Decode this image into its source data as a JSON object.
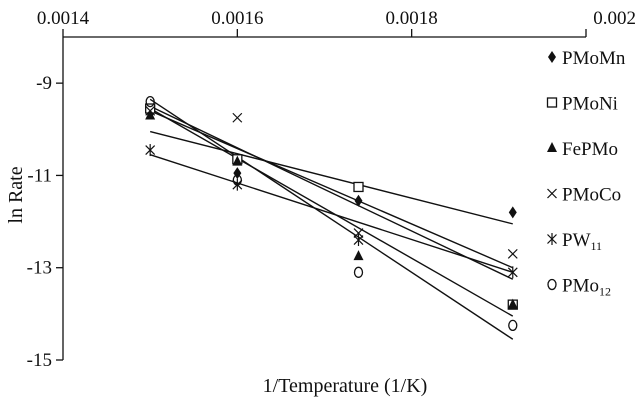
{
  "chart_data": {
    "type": "scatter",
    "title": "",
    "xlabel": "1/Temperature (1/K)",
    "ylabel": "ln Rate",
    "xlim": [
      0.0014,
      0.002
    ],
    "ylim": [
      -15,
      -8
    ],
    "x_ticks": [
      0.0014,
      0.0016,
      0.0018,
      0.002
    ],
    "x_tick_labels": [
      "0.0014",
      "0.0016",
      "0.0018",
      "0.002"
    ],
    "y_ticks": [
      -9,
      -11,
      -13,
      -15
    ],
    "y_tick_labels": [
      "-9",
      "-11",
      "-13",
      "-15"
    ],
    "x_axis_position": "top",
    "grid": false,
    "legend_position": "right",
    "series": [
      {
        "name": "PMoMn",
        "name_sub": "",
        "marker": "filled-diamond",
        "x": [
          0.0015,
          0.0016,
          0.001739,
          0.001916
        ],
        "y": [
          -9.65,
          -10.95,
          -11.55,
          -11.8
        ],
        "fit": [
          [
            0.0015,
            -9.6
          ],
          [
            0.001916,
            -13.0
          ]
        ]
      },
      {
        "name": "PMoNi",
        "name_sub": "",
        "marker": "open-square",
        "x": [
          0.0015,
          0.0016,
          0.001739,
          0.001916
        ],
        "y": [
          -9.55,
          -10.65,
          -11.25,
          -13.8
        ],
        "fit": [
          [
            0.0015,
            -9.5
          ],
          [
            0.001916,
            -13.25
          ]
        ]
      },
      {
        "name": "FePMo",
        "name_sub": "",
        "marker": "filled-triangle",
        "x": [
          0.0015,
          0.0016,
          0.001739,
          0.001916
        ],
        "y": [
          -9.7,
          -10.7,
          -12.75,
          -13.8
        ],
        "fit": [
          [
            0.0015,
            -9.55
          ],
          [
            0.001916,
            -14.05
          ]
        ]
      },
      {
        "name": "PMoCo",
        "name_sub": "",
        "marker": "cross",
        "x": [
          0.0015,
          0.0016,
          0.001739,
          0.001916
        ],
        "y": [
          -9.6,
          -9.75,
          -12.25,
          -12.7
        ],
        "fit": [
          [
            0.0015,
            -10.05
          ],
          [
            0.001916,
            -12.05
          ]
        ]
      },
      {
        "name": "PW",
        "name_sub": "11",
        "marker": "asterisk",
        "x": [
          0.0015,
          0.0016,
          0.001739,
          0.001916
        ],
        "y": [
          -10.45,
          -11.2,
          -12.4,
          -13.1
        ],
        "fit": [
          [
            0.0015,
            -10.55
          ],
          [
            0.001916,
            -13.1
          ]
        ]
      },
      {
        "name": "PMo",
        "name_sub": "12",
        "marker": "open-circle",
        "x": [
          0.0015,
          0.0016,
          0.001739,
          0.001916
        ],
        "y": [
          -9.4,
          -11.1,
          -13.1,
          -14.25
        ],
        "fit": [
          [
            0.0015,
            -9.35
          ],
          [
            0.001916,
            -14.55
          ]
        ]
      }
    ]
  }
}
